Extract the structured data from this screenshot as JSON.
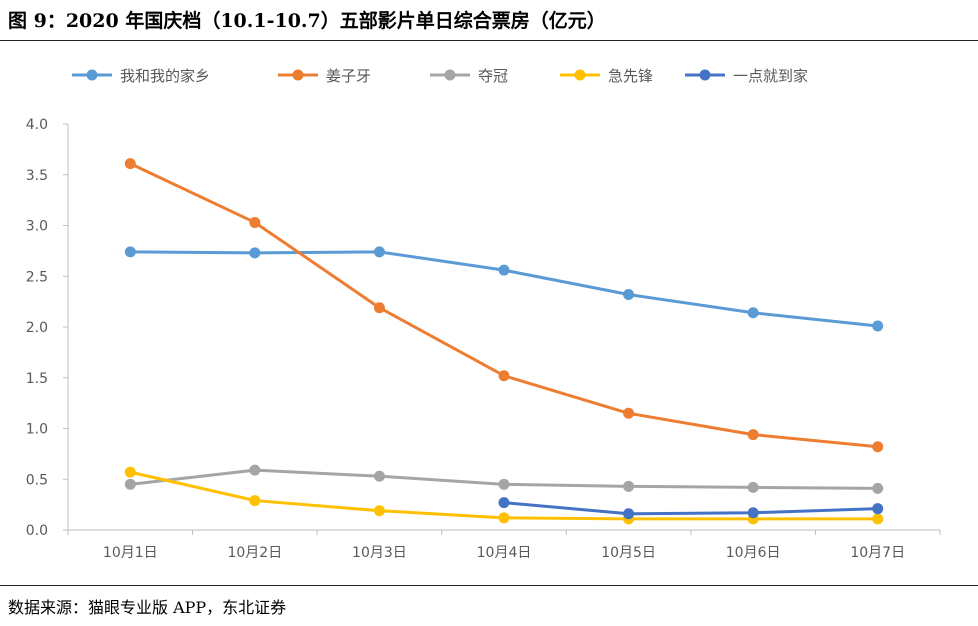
{
  "header": {
    "title": "图 9：2020 年国庆档（10.1-10.7）五部影片单日综合票房（亿元）"
  },
  "footer": {
    "source": "数据来源：猫眼专业版 APP，东北证券"
  },
  "chart_data": {
    "type": "line",
    "title": "",
    "xlabel": "",
    "ylabel": "",
    "ylim": [
      0,
      4.0
    ],
    "yticks": [
      "0.0",
      "0.5",
      "1.0",
      "1.5",
      "2.0",
      "2.5",
      "3.0",
      "3.5",
      "4.0"
    ],
    "categories": [
      "10月1日",
      "10月2日",
      "10月3日",
      "10月4日",
      "10月5日",
      "10月6日",
      "10月7日"
    ],
    "legend_position": "top",
    "grid": false,
    "series": [
      {
        "name": "我和我的家乡",
        "color": "#5B9BD5",
        "values": [
          2.74,
          2.73,
          2.74,
          2.56,
          2.32,
          2.14,
          2.01
        ]
      },
      {
        "name": "姜子牙",
        "color": "#ED7D31",
        "values": [
          3.61,
          3.03,
          2.19,
          1.52,
          1.15,
          0.94,
          0.82
        ]
      },
      {
        "name": "夺冠",
        "color": "#A5A5A5",
        "values": [
          0.45,
          0.59,
          0.53,
          0.45,
          0.43,
          0.42,
          0.41
        ]
      },
      {
        "name": "急先锋",
        "color": "#FFC000",
        "values": [
          0.57,
          0.29,
          0.19,
          0.12,
          0.11,
          0.11,
          0.11
        ]
      },
      {
        "name": "一点就到家",
        "color": "#4472C4",
        "values": [
          null,
          null,
          null,
          0.27,
          0.16,
          0.17,
          0.21
        ]
      }
    ]
  }
}
